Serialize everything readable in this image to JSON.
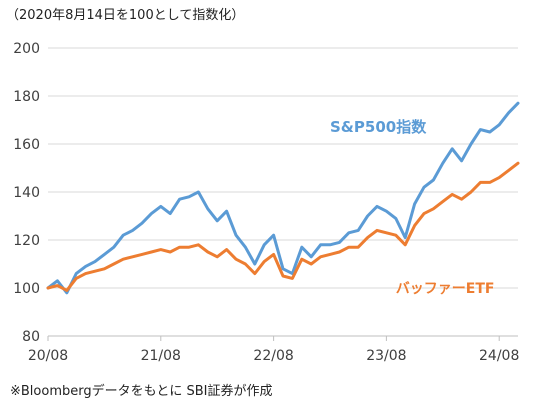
{
  "header_note": "（2020年8月14日を100として指数化）",
  "footer_note": "※Bloombergデータをもとに SBI証券が作成",
  "colors": {
    "sp500": "#5b9bd5",
    "buffett": "#ed7d31",
    "axis": "#bfbfbf",
    "grid": "#d9d9d9",
    "text": "#404040"
  },
  "chart_data": {
    "type": "line",
    "grid": true,
    "ylim": [
      80,
      200
    ],
    "yticks": [
      80,
      100,
      120,
      140,
      160,
      180,
      200
    ],
    "x_tick_labels": [
      "20/08",
      "21/08",
      "22/08",
      "23/08",
      "24/08"
    ],
    "x_tick_positions": [
      "2020-08",
      "2021-08",
      "2022-08",
      "2023-08",
      "2024-08"
    ],
    "xlim": [
      "2020-08",
      "2024-10"
    ],
    "series": [
      {
        "name": "S&P500指数",
        "color": "#5b9bd5",
        "points": [
          [
            "2020-08",
            100
          ],
          [
            "2020-09",
            103
          ],
          [
            "2020-10",
            98
          ],
          [
            "2020-11",
            106
          ],
          [
            "2020-12",
            109
          ],
          [
            "2021-01",
            111
          ],
          [
            "2021-02",
            114
          ],
          [
            "2021-03",
            117
          ],
          [
            "2021-04",
            122
          ],
          [
            "2021-05",
            124
          ],
          [
            "2021-06",
            127
          ],
          [
            "2021-07",
            131
          ],
          [
            "2021-08",
            134
          ],
          [
            "2021-09",
            131
          ],
          [
            "2021-10",
            137
          ],
          [
            "2021-11",
            138
          ],
          [
            "2021-12",
            140
          ],
          [
            "2022-01",
            133
          ],
          [
            "2022-02",
            128
          ],
          [
            "2022-03",
            132
          ],
          [
            "2022-04",
            122
          ],
          [
            "2022-05",
            117
          ],
          [
            "2022-06",
            110
          ],
          [
            "2022-07",
            118
          ],
          [
            "2022-08",
            122
          ],
          [
            "2022-09",
            108
          ],
          [
            "2022-10",
            106
          ],
          [
            "2022-11",
            117
          ],
          [
            "2022-12",
            113
          ],
          [
            "2023-01",
            118
          ],
          [
            "2023-02",
            118
          ],
          [
            "2023-03",
            119
          ],
          [
            "2023-04",
            123
          ],
          [
            "2023-05",
            124
          ],
          [
            "2023-06",
            130
          ],
          [
            "2023-07",
            134
          ],
          [
            "2023-08",
            132
          ],
          [
            "2023-09",
            129
          ],
          [
            "2023-10",
            121
          ],
          [
            "2023-11",
            135
          ],
          [
            "2023-12",
            142
          ],
          [
            "2024-01",
            145
          ],
          [
            "2024-02",
            152
          ],
          [
            "2024-03",
            158
          ],
          [
            "2024-04",
            153
          ],
          [
            "2024-05",
            160
          ],
          [
            "2024-06",
            166
          ],
          [
            "2024-07",
            165
          ],
          [
            "2024-08",
            168
          ],
          [
            "2024-09",
            173
          ],
          [
            "2024-10",
            177
          ]
        ]
      },
      {
        "name": "バッファーETF",
        "color": "#ed7d31",
        "points": [
          [
            "2020-08",
            100
          ],
          [
            "2020-09",
            101
          ],
          [
            "2020-10",
            99
          ],
          [
            "2020-11",
            104
          ],
          [
            "2020-12",
            106
          ],
          [
            "2021-01",
            107
          ],
          [
            "2021-02",
            108
          ],
          [
            "2021-03",
            110
          ],
          [
            "2021-04",
            112
          ],
          [
            "2021-05",
            113
          ],
          [
            "2021-06",
            114
          ],
          [
            "2021-07",
            115
          ],
          [
            "2021-08",
            116
          ],
          [
            "2021-09",
            115
          ],
          [
            "2021-10",
            117
          ],
          [
            "2021-11",
            117
          ],
          [
            "2021-12",
            118
          ],
          [
            "2022-01",
            115
          ],
          [
            "2022-02",
            113
          ],
          [
            "2022-03",
            116
          ],
          [
            "2022-04",
            112
          ],
          [
            "2022-05",
            110
          ],
          [
            "2022-06",
            106
          ],
          [
            "2022-07",
            111
          ],
          [
            "2022-08",
            114
          ],
          [
            "2022-09",
            105
          ],
          [
            "2022-10",
            104
          ],
          [
            "2022-11",
            112
          ],
          [
            "2022-12",
            110
          ],
          [
            "2023-01",
            113
          ],
          [
            "2023-02",
            114
          ],
          [
            "2023-03",
            115
          ],
          [
            "2023-04",
            117
          ],
          [
            "2023-05",
            117
          ],
          [
            "2023-06",
            121
          ],
          [
            "2023-07",
            124
          ],
          [
            "2023-08",
            123
          ],
          [
            "2023-09",
            122
          ],
          [
            "2023-10",
            118
          ],
          [
            "2023-11",
            126
          ],
          [
            "2023-12",
            131
          ],
          [
            "2024-01",
            133
          ],
          [
            "2024-02",
            136
          ],
          [
            "2024-03",
            139
          ],
          [
            "2024-04",
            137
          ],
          [
            "2024-05",
            140
          ],
          [
            "2024-06",
            144
          ],
          [
            "2024-07",
            144
          ],
          [
            "2024-08",
            146
          ],
          [
            "2024-09",
            149
          ],
          [
            "2024-10",
            152
          ]
        ]
      }
    ]
  }
}
